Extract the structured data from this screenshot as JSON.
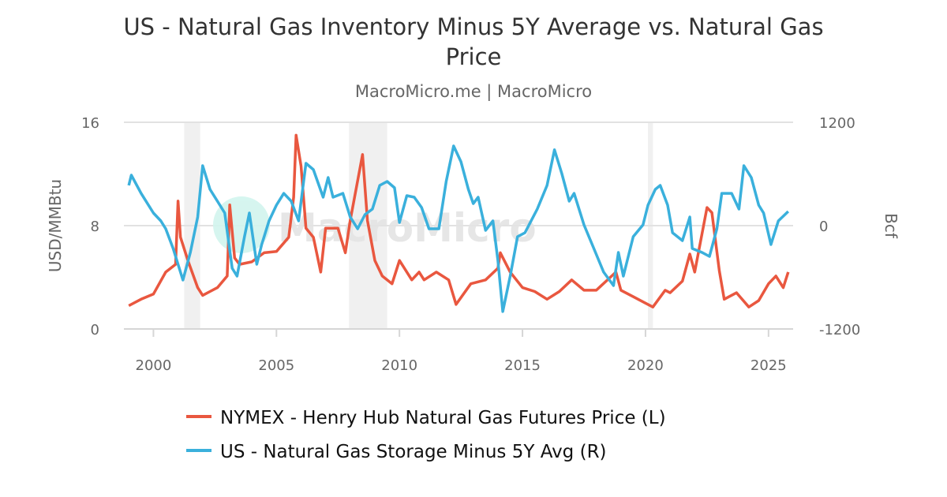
{
  "chart_data": {
    "type": "line",
    "title": "US - Natural Gas Inventory Minus 5Y Average vs. Natural Gas Price",
    "title_lines": [
      "US - Natural Gas Inventory Minus 5Y Average vs. Natural Gas",
      "Price"
    ],
    "subtitle": "MacroMicro.me | MacroMicro",
    "watermark": "MacroMicro",
    "xlim": [
      1998.8,
      2026.0
    ],
    "x_ticks": [
      2000,
      2005,
      2010,
      2015,
      2020,
      2025
    ],
    "x_tick_labels": [
      "2000",
      "2005",
      "2010",
      "2015",
      "2020",
      "2025"
    ],
    "y_left": {
      "label": "USD/MMBtu",
      "lim": [
        0,
        16
      ],
      "ticks": [
        0,
        8,
        16
      ],
      "tick_labels": [
        "0",
        "8",
        "16"
      ]
    },
    "y_right": {
      "label": "Bcf",
      "lim": [
        -1200,
        1200
      ],
      "ticks": [
        -1200,
        0,
        1200
      ],
      "tick_labels": [
        "-1200",
        "0",
        "1200"
      ]
    },
    "grid": true,
    "legend_placement": "bottom",
    "shaded_periods": [
      [
        2001.25,
        2001.9
      ],
      [
        2007.95,
        2009.5
      ],
      [
        2020.1,
        2020.3
      ]
    ],
    "series": [
      {
        "name": "NYMEX - Henry Hub Natural Gas Futures Price (L)",
        "axis": "left",
        "color": "#e9573f",
        "x": [
          1999.0,
          1999.5,
          2000.0,
          2000.5,
          2000.9,
          2001.0,
          2001.1,
          2001.4,
          2001.8,
          2002.0,
          2002.3,
          2002.6,
          2003.0,
          2003.1,
          2003.3,
          2003.5,
          2004.0,
          2004.5,
          2005.0,
          2005.5,
          2005.7,
          2005.8,
          2006.0,
          2006.2,
          2006.5,
          2006.8,
          2007.0,
          2007.5,
          2007.8,
          2008.0,
          2008.5,
          2008.7,
          2009.0,
          2009.3,
          2009.7,
          2010.0,
          2010.5,
          2010.8,
          2011.0,
          2011.5,
          2012.0,
          2012.3,
          2012.9,
          2013.5,
          2014.0,
          2014.1,
          2014.5,
          2015.0,
          2015.5,
          2016.0,
          2016.5,
          2017.0,
          2017.5,
          2018.0,
          2018.8,
          2019.0,
          2019.5,
          2020.3,
          2020.8,
          2021.0,
          2021.5,
          2021.8,
          2022.0,
          2022.5,
          2022.7,
          2023.0,
          2023.2,
          2023.7,
          2024.2,
          2024.6,
          2025.0,
          2025.3,
          2025.6,
          2025.8
        ],
        "values": [
          1.8,
          2.3,
          2.7,
          4.4,
          5.0,
          9.9,
          7.1,
          5.3,
          3.2,
          2.6,
          2.9,
          3.2,
          4.1,
          9.6,
          5.5,
          5.0,
          5.2,
          5.9,
          6.0,
          7.1,
          10.2,
          15.0,
          12.6,
          7.8,
          7.1,
          4.4,
          7.8,
          7.8,
          5.9,
          8.4,
          13.5,
          8.4,
          5.3,
          4.1,
          3.5,
          5.3,
          3.8,
          4.4,
          3.8,
          4.4,
          3.8,
          1.9,
          3.5,
          3.8,
          4.7,
          5.9,
          4.4,
          3.2,
          2.9,
          2.3,
          2.9,
          3.8,
          3.0,
          3.0,
          4.4,
          3.0,
          2.5,
          1.7,
          3.0,
          2.8,
          3.7,
          5.8,
          4.4,
          9.4,
          9.0,
          4.5,
          2.3,
          2.8,
          1.7,
          2.2,
          3.5,
          4.1,
          3.2,
          4.4
        ]
      },
      {
        "name": "US - Natural Gas Storage Minus 5Y Avg (R)",
        "axis": "right",
        "color": "#3ab0dc",
        "x": [
          1999.0,
          1999.1,
          1999.5,
          2000.0,
          2000.3,
          2000.5,
          2000.8,
          2001.2,
          2001.5,
          2001.8,
          2002.0,
          2002.3,
          2002.6,
          2002.9,
          2003.2,
          2003.4,
          2003.7,
          2003.9,
          2004.2,
          2004.4,
          2004.7,
          2005.0,
          2005.3,
          2005.6,
          2005.9,
          2006.2,
          2006.5,
          2006.9,
          2007.1,
          2007.3,
          2007.7,
          2008.0,
          2008.3,
          2008.6,
          2008.9,
          2009.2,
          2009.5,
          2009.8,
          2010.0,
          2010.3,
          2010.6,
          2010.9,
          2011.2,
          2011.6,
          2011.9,
          2012.2,
          2012.5,
          2012.8,
          2013.0,
          2013.2,
          2013.5,
          2013.8,
          2014.0,
          2014.2,
          2014.5,
          2014.8,
          2015.1,
          2015.3,
          2015.6,
          2016.0,
          2016.3,
          2016.6,
          2016.9,
          2017.1,
          2017.5,
          2017.9,
          2018.3,
          2018.7,
          2018.9,
          2019.1,
          2019.5,
          2019.9,
          2020.1,
          2020.4,
          2020.6,
          2020.9,
          2021.1,
          2021.5,
          2021.8,
          2021.9,
          2022.3,
          2022.6,
          2022.9,
          2023.1,
          2023.5,
          2023.8,
          2024.0,
          2024.3,
          2024.6,
          2024.8,
          2025.1,
          2025.4,
          2025.8
        ],
        "values": [
          467,
          586,
          375,
          147,
          55,
          -37,
          -266,
          -632,
          -311,
          100,
          696,
          421,
          284,
          147,
          -495,
          -586,
          -128,
          147,
          -449,
          -220,
          55,
          238,
          375,
          284,
          55,
          724,
          650,
          330,
          559,
          330,
          375,
          100,
          -37,
          128,
          192,
          467,
          513,
          440,
          37,
          348,
          330,
          211,
          -37,
          -37,
          513,
          925,
          742,
          421,
          256,
          330,
          -55,
          55,
          -403,
          -998,
          -586,
          -128,
          -82,
          27,
          192,
          467,
          880,
          605,
          284,
          375,
          9,
          -266,
          -540,
          -696,
          -311,
          -586,
          -128,
          9,
          238,
          421,
          467,
          238,
          -82,
          -174,
          100,
          -266,
          -311,
          -357,
          -37,
          375,
          375,
          192,
          696,
          559,
          238,
          147,
          -220,
          55,
          165
        ]
      }
    ]
  }
}
